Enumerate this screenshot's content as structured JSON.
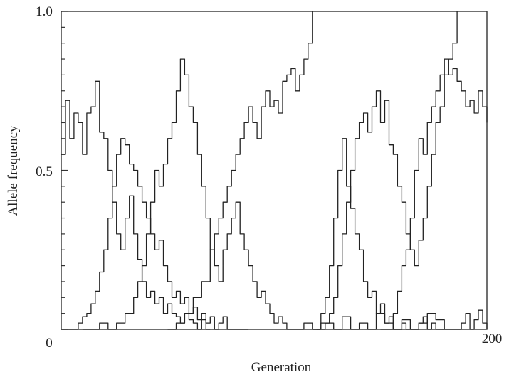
{
  "chart_data": {
    "type": "line",
    "xlabel": "Generation",
    "ylabel": "Allele frequency",
    "xlim": [
      0,
      200
    ],
    "ylim": [
      0,
      1.0
    ],
    "x_tick_labels": [
      "0",
      "200"
    ],
    "y_tick_labels": [
      "0.5",
      "1.0"
    ],
    "x_tick_values": [
      0,
      200
    ],
    "y_tick_values": [
      0.5,
      1.0
    ],
    "grid": false,
    "series": [
      {
        "x": [
          0,
          2,
          4,
          6,
          8,
          10,
          12,
          14,
          16,
          18,
          20,
          22,
          24,
          26,
          28,
          30,
          32,
          34,
          36,
          38,
          40,
          42,
          44,
          46,
          48,
          50,
          52,
          54,
          56,
          58,
          60,
          62,
          64,
          66,
          68,
          70
        ],
        "values": [
          0.55,
          0.72,
          0.6,
          0.68,
          0.65,
          0.55,
          0.68,
          0.7,
          0.78,
          0.62,
          0.6,
          0.5,
          0.4,
          0.3,
          0.25,
          0.35,
          0.42,
          0.3,
          0.22,
          0.15,
          0.1,
          0.12,
          0.08,
          0.1,
          0.05,
          0.08,
          0.05,
          0.04,
          0.02,
          0.05,
          0.03,
          0.02,
          0.0,
          0.03,
          0.0,
          0.0
        ]
      },
      {
        "x": [
          0,
          4,
          8,
          10,
          12,
          14,
          16,
          18,
          20,
          22,
          24,
          26,
          28,
          30,
          32,
          34,
          36,
          38,
          40,
          42,
          44,
          46,
          48,
          50,
          52,
          54,
          56,
          58,
          60,
          62,
          64,
          66,
          68,
          70,
          72,
          74,
          76,
          78,
          80,
          84,
          88
        ],
        "values": [
          0.0,
          0.0,
          0.02,
          0.04,
          0.05,
          0.08,
          0.12,
          0.18,
          0.25,
          0.35,
          0.45,
          0.55,
          0.6,
          0.58,
          0.52,
          0.5,
          0.45,
          0.4,
          0.35,
          0.3,
          0.25,
          0.28,
          0.2,
          0.15,
          0.1,
          0.12,
          0.08,
          0.1,
          0.05,
          0.07,
          0.03,
          0.05,
          0.02,
          0.04,
          0.0,
          0.02,
          0.04,
          0.0,
          0.0,
          0.0,
          0.0
        ]
      },
      {
        "x": [
          10,
          14,
          18,
          22,
          26,
          30,
          34,
          36,
          38,
          40,
          42,
          44,
          46,
          48,
          50,
          52,
          54,
          56,
          58,
          60,
          62,
          64,
          66,
          68,
          70,
          72,
          74,
          76,
          78,
          80,
          82,
          84,
          86,
          88,
          90,
          92,
          94,
          96,
          98,
          100,
          102,
          104,
          106,
          108,
          110
        ],
        "values": [
          0.0,
          0.0,
          0.02,
          0.0,
          0.02,
          0.05,
          0.1,
          0.15,
          0.2,
          0.3,
          0.4,
          0.5,
          0.45,
          0.52,
          0.6,
          0.65,
          0.75,
          0.85,
          0.8,
          0.7,
          0.65,
          0.55,
          0.45,
          0.35,
          0.25,
          0.2,
          0.15,
          0.25,
          0.3,
          0.35,
          0.4,
          0.3,
          0.25,
          0.2,
          0.15,
          0.1,
          0.12,
          0.08,
          0.05,
          0.02,
          0.04,
          0.02,
          0.0,
          0.0,
          0.0
        ]
      },
      {
        "x": [
          50,
          54,
          58,
          62,
          66,
          70,
          72,
          74,
          76,
          78,
          80,
          82,
          84,
          86,
          88,
          90,
          92,
          94,
          96,
          98,
          100,
          102,
          104,
          106,
          108,
          110,
          112,
          114,
          116,
          118
        ],
        "values": [
          0.0,
          0.02,
          0.05,
          0.1,
          0.15,
          0.25,
          0.3,
          0.35,
          0.4,
          0.45,
          0.5,
          0.55,
          0.6,
          0.65,
          0.7,
          0.65,
          0.6,
          0.7,
          0.75,
          0.7,
          0.72,
          0.68,
          0.78,
          0.8,
          0.82,
          0.75,
          0.8,
          0.85,
          0.9,
          1.0
        ]
      },
      {
        "x": [
          110,
          114,
          118,
          122,
          124,
          126,
          128,
          130,
          132,
          134,
          136,
          138,
          140,
          142,
          144,
          146,
          148,
          150,
          152,
          154,
          156,
          158,
          160,
          162,
          164,
          166,
          168,
          170,
          172,
          174,
          176,
          178,
          180
        ],
        "values": [
          0.0,
          0.02,
          0.0,
          0.05,
          0.1,
          0.2,
          0.35,
          0.5,
          0.6,
          0.45,
          0.38,
          0.3,
          0.25,
          0.15,
          0.1,
          0.12,
          0.05,
          0.08,
          0.02,
          0.04,
          0.0,
          0.0,
          0.02,
          0.0,
          0.0,
          0.0,
          0.02,
          0.04,
          0.0,
          0.02,
          0.0,
          0.0,
          0.0
        ]
      },
      {
        "x": [
          118,
          122,
          126,
          128,
          130,
          132,
          134,
          136,
          138,
          140,
          142,
          144,
          146,
          148,
          150,
          152,
          154,
          156,
          158,
          160,
          162,
          164,
          166,
          168,
          170,
          172,
          174,
          176,
          178,
          180,
          182,
          184,
          186
        ],
        "values": [
          0.0,
          0.02,
          0.05,
          0.1,
          0.2,
          0.3,
          0.4,
          0.5,
          0.6,
          0.65,
          0.68,
          0.62,
          0.7,
          0.75,
          0.65,
          0.72,
          0.58,
          0.55,
          0.45,
          0.4,
          0.3,
          0.25,
          0.2,
          0.28,
          0.35,
          0.45,
          0.55,
          0.65,
          0.7,
          0.8,
          0.85,
          0.9,
          1.0
        ]
      },
      {
        "x": [
          150,
          154,
          156,
          158,
          160,
          162,
          164,
          166,
          168,
          170,
          172,
          174,
          176,
          178,
          180,
          182,
          184,
          186,
          188,
          190,
          192,
          194,
          196,
          198,
          200
        ],
        "values": [
          0.0,
          0.0,
          0.05,
          0.12,
          0.2,
          0.25,
          0.35,
          0.5,
          0.6,
          0.55,
          0.65,
          0.7,
          0.75,
          0.8,
          0.85,
          0.8,
          0.82,
          0.78,
          0.75,
          0.7,
          0.72,
          0.68,
          0.75,
          0.7,
          0.65
        ]
      },
      {
        "x": [
          120,
          124,
          128,
          132,
          136,
          140,
          144,
          148,
          152,
          156,
          160,
          164,
          168,
          172,
          176,
          180,
          184,
          186,
          188,
          190,
          192,
          194,
          196,
          198,
          200
        ],
        "values": [
          0.0,
          0.02,
          0.0,
          0.04,
          0.0,
          0.02,
          0.0,
          0.05,
          0.02,
          0.0,
          0.03,
          0.0,
          0.02,
          0.05,
          0.03,
          0.0,
          0.0,
          0.0,
          0.02,
          0.05,
          0.0,
          0.03,
          0.06,
          0.02,
          0.0
        ]
      }
    ]
  }
}
